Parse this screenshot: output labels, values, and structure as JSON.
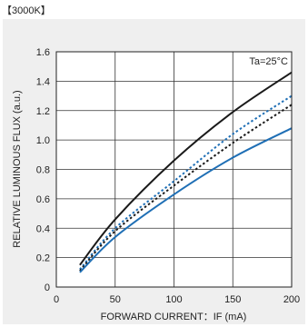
{
  "header": {
    "tag": "【3000K】"
  },
  "chart_data": {
    "type": "line",
    "annotation": "Ta=25°C",
    "xlabel": "FORWARD CURRENT：IF (mA)",
    "ylabel": "RELATIVE LUMINOUS FLUX (a.u.)",
    "xlim": [
      0,
      200
    ],
    "ylim": [
      0,
      1.6
    ],
    "xticks": [
      0,
      50,
      100,
      150,
      200
    ],
    "yticks": [
      0,
      0.2,
      0.4,
      0.6,
      0.8,
      1.0,
      1.2,
      1.4,
      1.6
    ],
    "xtick_labels": [
      "0",
      "50",
      "100",
      "150",
      "200"
    ],
    "ytick_labels": [
      "0",
      "0.2",
      "0.4",
      "0.6",
      "0.8",
      "1.0",
      "1.2",
      "1.4",
      "1.6"
    ],
    "grid": true,
    "x": [
      20,
      50,
      100,
      150,
      200
    ],
    "series": [
      {
        "color": "#1a1a1a",
        "dash": "solid",
        "values": [
          0.15,
          0.46,
          0.86,
          1.19,
          1.46
        ]
      },
      {
        "color": "#1f6fb5",
        "dash": "dotted",
        "values": [
          0.12,
          0.4,
          0.72,
          1.04,
          1.3
        ]
      },
      {
        "color": "#1a1a1a",
        "dash": "dotted",
        "values": [
          0.11,
          0.38,
          0.69,
          0.98,
          1.24
        ]
      },
      {
        "color": "#1f6fb5",
        "dash": "solid",
        "values": [
          0.1,
          0.34,
          0.63,
          0.88,
          1.08
        ]
      }
    ]
  }
}
